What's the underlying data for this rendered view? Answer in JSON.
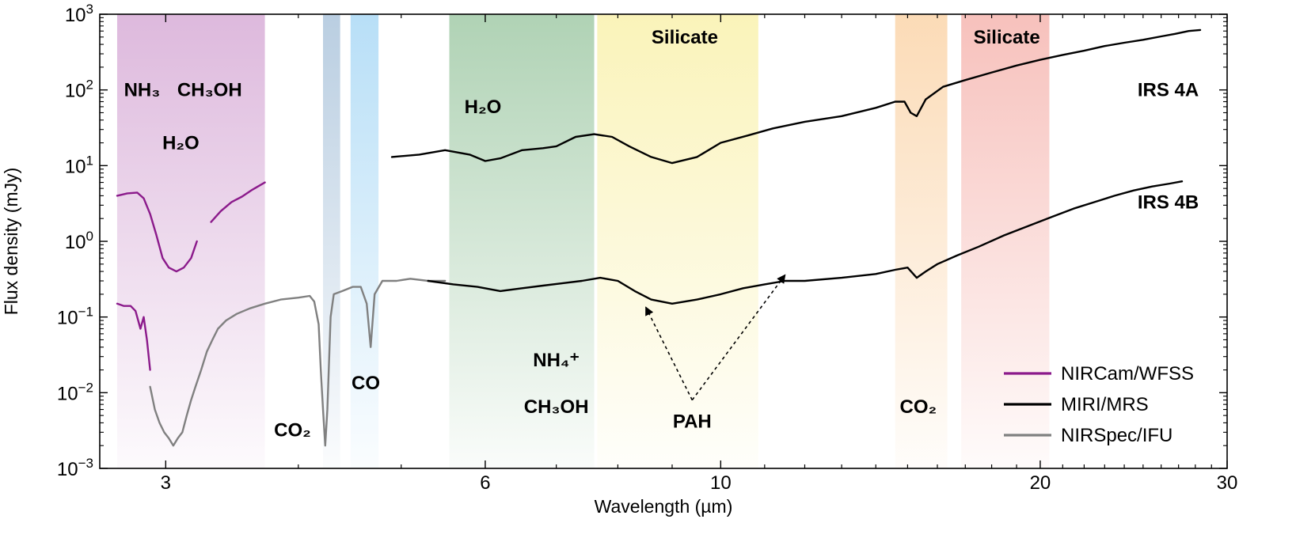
{
  "chart_data": {
    "type": "line",
    "xlabel": "Wavelength (µm)",
    "ylabel": "Flux density (mJy)",
    "x_scale": "log",
    "y_scale": "log",
    "xlim": [
      2.6,
      30
    ],
    "ylim": [
      0.001,
      1000
    ],
    "x_ticks": [
      3,
      6,
      10,
      20,
      30
    ],
    "x_tick_labels": [
      "3",
      "6",
      "10",
      "20",
      "30"
    ],
    "y_ticks": [
      0.001,
      0.01,
      0.1,
      1,
      10,
      100,
      1000
    ],
    "y_tick_labels": [
      {
        "base": "10",
        "exp": "−3"
      },
      {
        "base": "10",
        "exp": "−2"
      },
      {
        "base": "10",
        "exp": "−1"
      },
      {
        "base": "10",
        "exp": "0"
      },
      {
        "base": "10",
        "exp": "1"
      },
      {
        "base": "10",
        "exp": "2"
      },
      {
        "base": "10",
        "exp": "3"
      }
    ],
    "grid": false,
    "legend_position": "bottom-right",
    "legend": [
      {
        "label": "NIRCam/WFSS",
        "color": "#8b1a8b"
      },
      {
        "label": "MIRI/MRS",
        "color": "#000000"
      },
      {
        "label": "NIRSpec/IFU",
        "color": "#808080"
      }
    ],
    "bands": [
      {
        "range": [
          2.7,
          3.72
        ],
        "color": "#c98ec8",
        "fade": "bottom"
      },
      {
        "range": [
          4.22,
          4.38
        ],
        "color": "#8fb0cf",
        "fade": "bottom"
      },
      {
        "range": [
          4.48,
          4.76
        ],
        "color": "#8ccbf2",
        "fade": "bottom"
      },
      {
        "range": [
          5.55,
          7.6
        ],
        "color": "#7fb787",
        "fade": "bottom"
      },
      {
        "range": [
          7.65,
          10.85
        ],
        "color": "#f7ec8f",
        "fade": "bottom"
      },
      {
        "range": [
          14.6,
          16.35
        ],
        "color": "#f9c58a",
        "fade": "bottom"
      },
      {
        "range": [
          16.85,
          20.4
        ],
        "color": "#f29b93",
        "fade": "bottom"
      }
    ],
    "band_labels": [
      {
        "text": "NH₃",
        "x": 2.85,
        "y": 100
      },
      {
        "text": "CH₃OH",
        "x": 3.3,
        "y": 100
      },
      {
        "text": "H₂O",
        "x": 3.1,
        "y": 20
      },
      {
        "text": "CO₂",
        "x": 3.95,
        "y": 0.0032
      },
      {
        "text": "CO",
        "x": 4.63,
        "y": 0.0135
      },
      {
        "text": "H₂O",
        "x": 5.97,
        "y": 60
      },
      {
        "text": "NH₄⁺",
        "x": 7.0,
        "y": 0.027
      },
      {
        "text": "CH₃OH",
        "x": 7.0,
        "y": 0.0065
      },
      {
        "text": "Silicate",
        "x": 9.25,
        "y": 500
      },
      {
        "text": "PAH",
        "x": 9.4,
        "y": 0.0042
      },
      {
        "text": "CO₂",
        "x": 15.35,
        "y": 0.0065
      },
      {
        "text": "Silicate",
        "x": 18.6,
        "y": 500
      }
    ],
    "source_labels": [
      {
        "text": "IRS 4A",
        "x": 26.4,
        "y": 100
      },
      {
        "text": "IRS 4B",
        "x": 26.4,
        "y": 3.3
      }
    ],
    "annotations": [
      {
        "text": "",
        "type": "arrow",
        "from": [
          9.4,
          0.008
        ],
        "to": [
          8.5,
          0.135
        ]
      },
      {
        "text": "",
        "type": "arrow",
        "from": [
          9.4,
          0.008
        ],
        "to": [
          11.5,
          0.36
        ]
      }
    ],
    "series": [
      {
        "name": "NIRCam/WFSS",
        "color": "#8b1a8b",
        "segment": "upper",
        "x": [
          2.7,
          2.76,
          2.82,
          2.86,
          2.9,
          2.94,
          2.98,
          3.02,
          3.07,
          3.12,
          3.17,
          3.21
        ],
        "y": [
          4.0,
          4.3,
          4.4,
          3.7,
          2.3,
          1.2,
          0.6,
          0.45,
          0.4,
          0.45,
          0.6,
          1.0
        ]
      },
      {
        "name": "NIRCam/WFSS",
        "color": "#8b1a8b",
        "segment": "upper",
        "x": [
          3.31,
          3.38,
          3.46,
          3.54,
          3.62,
          3.72
        ],
        "y": [
          1.8,
          2.5,
          3.3,
          3.9,
          4.8,
          6.0
        ]
      },
      {
        "name": "NIRCam/WFSS",
        "color": "#8b1a8b",
        "segment": "lower",
        "x": [
          2.7,
          2.74,
          2.78,
          2.81,
          2.84,
          2.86,
          2.88,
          2.9
        ],
        "y": [
          0.15,
          0.14,
          0.14,
          0.12,
          0.07,
          0.1,
          0.05,
          0.02
        ]
      },
      {
        "name": "NIRSpec/IFU",
        "color": "#808080",
        "segment": "lower",
        "x": [
          2.9,
          2.93,
          2.96,
          2.99,
          3.02,
          3.05,
          3.08,
          3.11,
          3.14,
          3.17,
          3.2,
          3.24,
          3.28,
          3.32,
          3.36,
          3.42,
          3.5,
          3.6,
          3.72,
          3.85,
          4.0,
          4.1,
          4.14,
          4.18,
          4.2,
          4.22,
          4.24,
          4.26,
          4.29,
          4.32,
          4.4,
          4.5,
          4.58,
          4.64,
          4.68,
          4.72,
          4.8,
          4.95,
          5.1,
          5.3,
          5.5
        ],
        "y": [
          0.012,
          0.006,
          0.004,
          0.003,
          0.0025,
          0.002,
          0.0025,
          0.003,
          0.005,
          0.008,
          0.012,
          0.02,
          0.035,
          0.05,
          0.07,
          0.09,
          0.11,
          0.13,
          0.15,
          0.17,
          0.18,
          0.19,
          0.16,
          0.08,
          0.02,
          0.006,
          0.002,
          0.006,
          0.1,
          0.2,
          0.22,
          0.25,
          0.25,
          0.15,
          0.04,
          0.2,
          0.3,
          0.3,
          0.32,
          0.3,
          0.3
        ]
      },
      {
        "name": "MIRI/MRS",
        "color": "#000000",
        "segment": "IRS 4A",
        "x": [
          4.9,
          5.2,
          5.5,
          5.8,
          6.0,
          6.2,
          6.5,
          6.8,
          7.0,
          7.3,
          7.6,
          7.9,
          8.2,
          8.6,
          9.0,
          9.5,
          10.0,
          10.6,
          11.2,
          12.0,
          13.0,
          14.0,
          14.6,
          14.9,
          15.1,
          15.3,
          15.6,
          16.2,
          17.0,
          18.0,
          19.0,
          20.0,
          21.0,
          22.0,
          23.0,
          24.0,
          25.0,
          26.0,
          26.8,
          27.6,
          28.3
        ],
        "y": [
          13,
          14,
          16,
          14,
          11.5,
          12.5,
          16,
          17,
          18,
          24,
          26,
          24,
          18,
          13,
          10.8,
          13,
          20,
          25,
          31,
          38,
          45,
          58,
          70,
          70,
          50,
          45,
          75,
          110,
          135,
          170,
          210,
          250,
          290,
          330,
          380,
          420,
          460,
          510,
          550,
          600,
          620
        ]
      },
      {
        "name": "MIRI/MRS",
        "color": "#000000",
        "segment": "IRS 4B",
        "x": [
          5.3,
          5.6,
          5.9,
          6.2,
          6.5,
          6.8,
          7.1,
          7.4,
          7.7,
          8.0,
          8.3,
          8.6,
          9.0,
          9.5,
          10.0,
          10.5,
          11.0,
          11.5,
          12.0,
          13.0,
          14.0,
          14.6,
          15.0,
          15.3,
          15.6,
          16.0,
          16.7,
          17.5,
          18.5,
          19.5,
          20.5,
          21.5,
          22.5,
          23.5,
          24.5,
          25.5,
          26.5,
          27.2
        ],
        "y": [
          0.3,
          0.27,
          0.25,
          0.22,
          0.24,
          0.26,
          0.28,
          0.3,
          0.33,
          0.3,
          0.22,
          0.17,
          0.15,
          0.17,
          0.2,
          0.24,
          0.27,
          0.3,
          0.3,
          0.33,
          0.37,
          0.42,
          0.45,
          0.33,
          0.4,
          0.5,
          0.65,
          0.85,
          1.2,
          1.6,
          2.1,
          2.7,
          3.3,
          4.0,
          4.7,
          5.3,
          5.8,
          6.2
        ]
      }
    ]
  }
}
